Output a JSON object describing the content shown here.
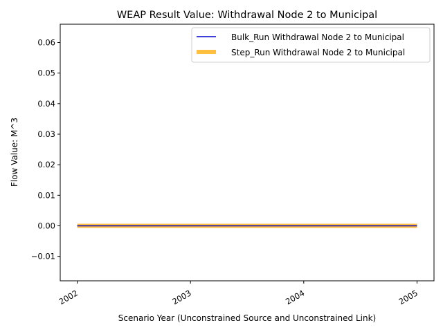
{
  "chart_data": {
    "type": "line",
    "title": "WEAP Result Value: Withdrawal Node 2 to Municipal",
    "xlabel": "Scenario Year (Unconstrained Source and Unconstrained Link)",
    "ylabel": "Flow Value: M^3",
    "x": [
      2002,
      2003,
      2004,
      2005
    ],
    "x_tick_labels": [
      "2002",
      "2003",
      "2004",
      "2005"
    ],
    "xlim": [
      2001.85,
      2005.15
    ],
    "ylim": [
      -0.018,
      0.066
    ],
    "y_ticks": [
      -0.01,
      0.0,
      0.01,
      0.02,
      0.03,
      0.04,
      0.05,
      0.06
    ],
    "y_tick_labels": [
      "−0.01",
      "0.00",
      "0.01",
      "0.02",
      "0.03",
      "0.04",
      "0.05",
      "0.06"
    ],
    "grid": false,
    "legend_position": "upper-right",
    "series": [
      {
        "name": "Bulk_Run Withdrawal Node 2 to Municipal",
        "values": [
          0,
          0,
          0,
          0
        ],
        "color": "#0000cc",
        "style": "thin"
      },
      {
        "name": "Step_Run Withdrawal Node 2 to Municipal",
        "values": [
          0,
          0,
          0,
          0
        ],
        "color": "#ffbf40",
        "style": "thick"
      }
    ]
  }
}
